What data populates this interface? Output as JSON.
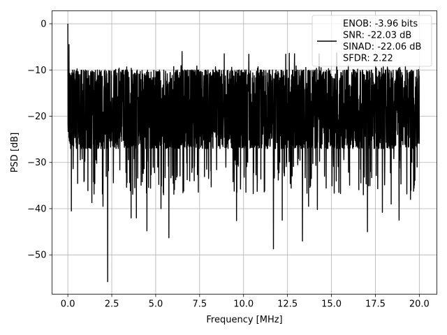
{
  "chart_data": {
    "type": "line",
    "title": "",
    "xlabel": "Frequency [MHz]",
    "ylabel": "PSD [dB]",
    "xlim": [
      -0.9,
      21.0
    ],
    "ylim": [
      -58.5,
      2.8
    ],
    "xticks": [
      0.0,
      2.5,
      5.0,
      7.5,
      10.0,
      12.5,
      15.0,
      17.5,
      20.0
    ],
    "xtick_labels": [
      "0.0",
      "2.5",
      "5.0",
      "7.5",
      "10.0",
      "12.5",
      "15.0",
      "17.5",
      "20.0"
    ],
    "yticks": [
      0,
      -10,
      -20,
      -30,
      -40,
      -50
    ],
    "ytick_labels": [
      "0",
      "−10",
      "−20",
      "−30",
      "−40",
      "−50"
    ],
    "grid": true,
    "legend_position": "top-right",
    "line_color": "#000000",
    "series": [
      {
        "name": "ENOB: -3.96 bits\nSNR: -22.03 dB\nSINAD: -22.06 dB\nSFDR: 2.22",
        "x_range": [
          0.0,
          20.0
        ],
        "typical_band": [
          -27,
          -10
        ],
        "dips": [
          {
            "x": 2.27,
            "y": -55.8
          },
          {
            "x": 11.7,
            "y": -48.7
          },
          {
            "x": 13.35,
            "y": -47.0
          },
          {
            "x": 5.75,
            "y": -46.3
          },
          {
            "x": 17.05,
            "y": -45.0
          },
          {
            "x": 4.5,
            "y": -44.8
          },
          {
            "x": 12.2,
            "y": -42.5
          },
          {
            "x": 9.6,
            "y": -42.6
          },
          {
            "x": 3.6,
            "y": -42.0
          },
          {
            "x": 3.9,
            "y": -42.0
          },
          {
            "x": 18.85,
            "y": -42.5
          },
          {
            "x": 17.9,
            "y": -40.8
          },
          {
            "x": 0.2,
            "y": -40.5
          },
          {
            "x": 14.2,
            "y": -40.2
          },
          {
            "x": 1.37,
            "y": -38.7
          },
          {
            "x": 2.0,
            "y": -39.5
          },
          {
            "x": 19.5,
            "y": -38.0
          },
          {
            "x": 18.4,
            "y": -39.0
          },
          {
            "x": 5.3,
            "y": -40.0
          },
          {
            "x": 13.7,
            "y": -39.5
          }
        ],
        "peaks": [
          {
            "x": 0.0,
            "y": 0.0
          },
          {
            "x": 0.07,
            "y": -4.5
          },
          {
            "x": 6.5,
            "y": -6.0
          },
          {
            "x": 15.3,
            "y": -6.3
          },
          {
            "x": 12.6,
            "y": -6.4
          },
          {
            "x": 8.9,
            "y": -6.5
          },
          {
            "x": 12.9,
            "y": -6.5
          },
          {
            "x": 14.3,
            "y": -6.5
          },
          {
            "x": 10.3,
            "y": -6.6
          },
          {
            "x": 12.4,
            "y": -6.6
          }
        ]
      }
    ]
  }
}
